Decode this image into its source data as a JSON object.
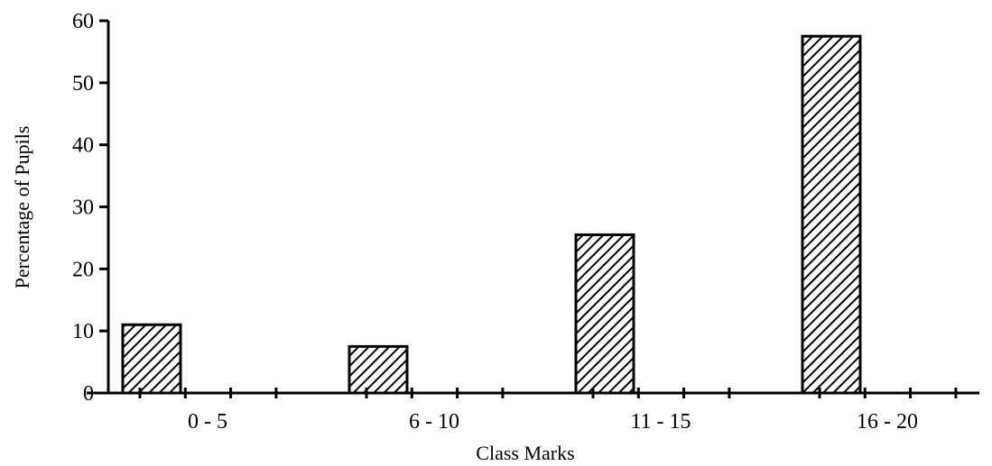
{
  "chart_data": {
    "type": "bar",
    "title": "",
    "xlabel": "Class Marks",
    "ylabel": "Percentage of Pupils",
    "categories": [
      "0 - 5",
      "6 - 10",
      "11 - 15",
      "16 - 20"
    ],
    "values": [
      11,
      7.5,
      25.5,
      57.5
    ],
    "ylim": [
      0,
      60
    ],
    "yticks": [
      "0",
      "10",
      "20",
      "30",
      "40",
      "50",
      "60"
    ],
    "grid": false,
    "legend": "none",
    "bar_fill": "diagonal-hatch",
    "colors": {
      "ink": "#000000",
      "background": "#ffffff"
    }
  }
}
